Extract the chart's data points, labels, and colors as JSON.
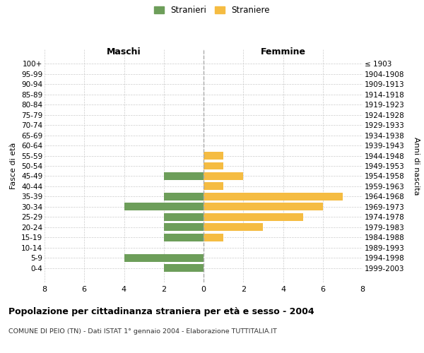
{
  "age_groups": [
    "100+",
    "95-99",
    "90-94",
    "85-89",
    "80-84",
    "75-79",
    "70-74",
    "65-69",
    "60-64",
    "55-59",
    "50-54",
    "45-49",
    "40-44",
    "35-39",
    "30-34",
    "25-29",
    "20-24",
    "15-19",
    "10-14",
    "5-9",
    "0-4"
  ],
  "birth_years": [
    "≤ 1903",
    "1904-1908",
    "1909-1913",
    "1914-1918",
    "1919-1923",
    "1924-1928",
    "1929-1933",
    "1934-1938",
    "1939-1943",
    "1944-1948",
    "1949-1953",
    "1954-1958",
    "1959-1963",
    "1964-1968",
    "1969-1973",
    "1974-1978",
    "1979-1983",
    "1984-1988",
    "1989-1993",
    "1994-1998",
    "1999-2003"
  ],
  "maschi": [
    0,
    0,
    0,
    0,
    0,
    0,
    0,
    0,
    0,
    0,
    0,
    2,
    0,
    2,
    4,
    2,
    2,
    2,
    0,
    4,
    2
  ],
  "femmine": [
    0,
    0,
    0,
    0,
    0,
    0,
    0,
    0,
    0,
    1,
    1,
    2,
    1,
    7,
    6,
    5,
    3,
    1,
    0,
    0,
    0
  ],
  "maschi_color": "#6d9e5a",
  "femmine_color": "#f5bc42",
  "title": "Popolazione per cittadinanza straniera per età e sesso - 2004",
  "subtitle": "COMUNE DI PEIO (TN) - Dati ISTAT 1° gennaio 2004 - Elaborazione TUTTITALIA.IT",
  "ylabel_left": "Fasce di età",
  "ylabel_right": "Anni di nascita",
  "xlabel_left": "Maschi",
  "xlabel_top_right": "Femmine",
  "legend_maschi": "Stranieri",
  "legend_femmine": "Straniere",
  "xlim": 8,
  "background_color": "#ffffff",
  "grid_color": "#cccccc"
}
